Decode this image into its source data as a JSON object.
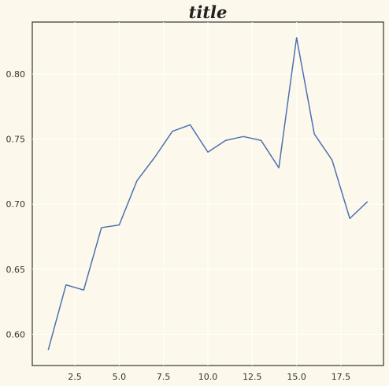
{
  "chart_data": {
    "type": "line",
    "title": "title",
    "xlabel": "",
    "ylabel": "",
    "x": [
      1,
      2,
      3,
      4,
      5,
      6,
      7,
      8,
      9,
      10,
      11,
      12,
      13,
      14,
      15,
      16,
      17,
      18,
      19
    ],
    "series": [
      {
        "values": [
          0.588,
          0.638,
          0.634,
          0.682,
          0.684,
          0.718,
          0.736,
          0.756,
          0.761,
          0.74,
          0.749,
          0.752,
          0.749,
          0.728,
          0.828,
          0.754,
          0.734,
          0.689,
          0.702
        ],
        "color": "#4c72b0"
      }
    ],
    "xlim": [
      0.1,
      19.9
    ],
    "ylim": [
      0.576,
      0.84
    ],
    "xticks": [
      2.5,
      5.0,
      7.5,
      10.0,
      12.5,
      15.0,
      17.5
    ],
    "xtick_labels": [
      "2.5",
      "5.0",
      "7.5",
      "10.0",
      "12.5",
      "15.0",
      "17.5"
    ],
    "yticks": [
      0.6,
      0.65,
      0.7,
      0.75,
      0.8
    ],
    "ytick_labels": [
      "0.60",
      "0.65",
      "0.70",
      "0.75",
      "0.80"
    ],
    "grid": true,
    "legend": "none"
  }
}
